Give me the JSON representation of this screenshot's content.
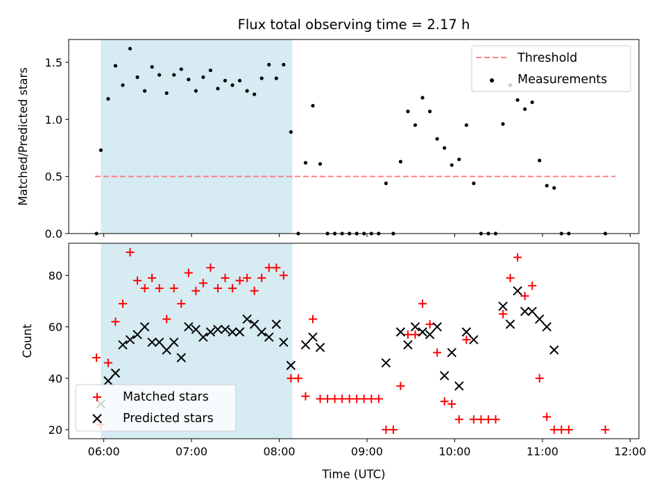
{
  "chart_data": [
    {
      "type": "scatter",
      "title": "Flux total observing time = 2.17 h",
      "xlabel": "",
      "ylabel": "Matched/Predicted stars",
      "xlim": [
        "05:36",
        "12:06"
      ],
      "ylim": [
        0,
        1.7
      ],
      "yticks": [
        0.0,
        0.5,
        1.0,
        1.5
      ],
      "ytick_labels": [
        "0.0",
        "0.5",
        "1.0",
        "1.5"
      ],
      "grid": false,
      "legend": "top-right",
      "shaded_span": {
        "from": "05:58",
        "to": "08:09",
        "color": "#add8e6"
      },
      "threshold": {
        "name": "Threshold",
        "value": 0.5,
        "from": "05:54",
        "to": "11:50",
        "color": "#ff7f7f"
      },
      "series": [
        {
          "name": "Measurements",
          "color": "#000000",
          "marker": "dot",
          "points": [
            [
              "05:55",
              0.0
            ],
            [
              "05:58",
              0.73
            ],
            [
              "06:03",
              1.18
            ],
            [
              "06:08",
              1.47
            ],
            [
              "06:13",
              1.3
            ],
            [
              "06:18",
              1.62
            ],
            [
              "06:23",
              1.37
            ],
            [
              "06:28",
              1.25
            ],
            [
              "06:33",
              1.46
            ],
            [
              "06:38",
              1.39
            ],
            [
              "06:43",
              1.23
            ],
            [
              "06:48",
              1.39
            ],
            [
              "06:53",
              1.44
            ],
            [
              "06:58",
              1.35
            ],
            [
              "07:03",
              1.25
            ],
            [
              "07:08",
              1.37
            ],
            [
              "07:13",
              1.43
            ],
            [
              "07:18",
              1.27
            ],
            [
              "07:23",
              1.34
            ],
            [
              "07:28",
              1.3
            ],
            [
              "07:33",
              1.34
            ],
            [
              "07:38",
              1.25
            ],
            [
              "07:43",
              1.22
            ],
            [
              "07:48",
              1.36
            ],
            [
              "07:53",
              1.48
            ],
            [
              "07:58",
              1.36
            ],
            [
              "08:03",
              1.48
            ],
            [
              "08:08",
              0.89
            ],
            [
              "08:13",
              0.0
            ],
            [
              "08:18",
              0.62
            ],
            [
              "08:23",
              1.12
            ],
            [
              "08:28",
              0.61
            ],
            [
              "08:33",
              0.0
            ],
            [
              "08:38",
              0.0
            ],
            [
              "08:43",
              0.0
            ],
            [
              "08:48",
              0.0
            ],
            [
              "08:53",
              0.0
            ],
            [
              "08:58",
              0.0
            ],
            [
              "09:03",
              0.0
            ],
            [
              "09:08",
              0.0
            ],
            [
              "09:13",
              0.44
            ],
            [
              "09:18",
              0.0
            ],
            [
              "09:23",
              0.63
            ],
            [
              "09:28",
              1.07
            ],
            [
              "09:33",
              0.95
            ],
            [
              "09:38",
              1.19
            ],
            [
              "09:43",
              1.07
            ],
            [
              "09:48",
              0.83
            ],
            [
              "09:53",
              0.75
            ],
            [
              "09:58",
              0.6
            ],
            [
              "10:03",
              0.65
            ],
            [
              "10:08",
              0.95
            ],
            [
              "10:13",
              0.44
            ],
            [
              "10:18",
              0.0
            ],
            [
              "10:23",
              0.0
            ],
            [
              "10:28",
              0.0
            ],
            [
              "10:33",
              0.96
            ],
            [
              "10:38",
              1.3
            ],
            [
              "10:43",
              1.17
            ],
            [
              "10:48",
              1.09
            ],
            [
              "10:53",
              1.15
            ],
            [
              "10:58",
              0.64
            ],
            [
              "11:03",
              0.42
            ],
            [
              "11:08",
              0.4
            ],
            [
              "11:13",
              0.0
            ],
            [
              "11:18",
              0.0
            ],
            [
              "11:43",
              0.0
            ]
          ]
        }
      ]
    },
    {
      "type": "scatter",
      "title": "",
      "xlabel": "Time (UTC)",
      "ylabel": "Count",
      "xlim": [
        "05:36",
        "12:06"
      ],
      "xticks": [
        "06:00",
        "07:00",
        "08:00",
        "09:00",
        "10:00",
        "11:00",
        "12:00"
      ],
      "ylim": [
        16.5,
        92.5
      ],
      "yticks": [
        20,
        40,
        60,
        80
      ],
      "ytick_labels": [
        "20",
        "40",
        "60",
        "80"
      ],
      "grid": false,
      "legend": "lower-left",
      "shaded_span": {
        "from": "05:58",
        "to": "08:09",
        "color": "#add8e6"
      },
      "series": [
        {
          "name": "Matched stars",
          "color": "#ff0000",
          "marker": "plus",
          "points": [
            [
              "05:55",
              48
            ],
            [
              "05:58",
              22
            ],
            [
              "06:03",
              46
            ],
            [
              "06:08",
              62
            ],
            [
              "06:13",
              69
            ],
            [
              "06:18",
              89
            ],
            [
              "06:23",
              78
            ],
            [
              "06:28",
              75
            ],
            [
              "06:33",
              79
            ],
            [
              "06:38",
              75
            ],
            [
              "06:43",
              63
            ],
            [
              "06:48",
              75
            ],
            [
              "06:53",
              69
            ],
            [
              "06:58",
              81
            ],
            [
              "07:03",
              74
            ],
            [
              "07:08",
              77
            ],
            [
              "07:13",
              83
            ],
            [
              "07:18",
              75
            ],
            [
              "07:23",
              79
            ],
            [
              "07:28",
              75
            ],
            [
              "07:33",
              78
            ],
            [
              "07:38",
              79
            ],
            [
              "07:43",
              74
            ],
            [
              "07:48",
              79
            ],
            [
              "07:53",
              83
            ],
            [
              "07:58",
              83
            ],
            [
              "08:03",
              80
            ],
            [
              "08:08",
              40
            ],
            [
              "08:13",
              40
            ],
            [
              "08:18",
              33
            ],
            [
              "08:23",
              63
            ],
            [
              "08:28",
              32
            ],
            [
              "08:33",
              32
            ],
            [
              "08:38",
              32
            ],
            [
              "08:43",
              32
            ],
            [
              "08:48",
              32
            ],
            [
              "08:53",
              32
            ],
            [
              "08:58",
              32
            ],
            [
              "09:03",
              32
            ],
            [
              "09:08",
              32
            ],
            [
              "09:13",
              20
            ],
            [
              "09:18",
              20
            ],
            [
              "09:23",
              37
            ],
            [
              "09:28",
              57
            ],
            [
              "09:33",
              57
            ],
            [
              "09:38",
              69
            ],
            [
              "09:43",
              61
            ],
            [
              "09:48",
              50
            ],
            [
              "09:53",
              31
            ],
            [
              "09:58",
              30
            ],
            [
              "10:03",
              24
            ],
            [
              "10:08",
              55
            ],
            [
              "10:13",
              24
            ],
            [
              "10:18",
              24
            ],
            [
              "10:23",
              24
            ],
            [
              "10:28",
              24
            ],
            [
              "10:33",
              65
            ],
            [
              "10:38",
              79
            ],
            [
              "10:43",
              87
            ],
            [
              "10:48",
              72
            ],
            [
              "10:53",
              76
            ],
            [
              "10:58",
              40
            ],
            [
              "11:03",
              25
            ],
            [
              "11:08",
              20
            ],
            [
              "11:13",
              20
            ],
            [
              "11:18",
              20
            ],
            [
              "11:43",
              20
            ]
          ]
        },
        {
          "name": "Predicted stars",
          "color": "#000000",
          "marker": "x",
          "points": [
            [
              "05:58",
              30
            ],
            [
              "06:03",
              39
            ],
            [
              "06:08",
              42
            ],
            [
              "06:13",
              53
            ],
            [
              "06:18",
              55
            ],
            [
              "06:23",
              57
            ],
            [
              "06:28",
              60
            ],
            [
              "06:33",
              54
            ],
            [
              "06:38",
              54
            ],
            [
              "06:43",
              51
            ],
            [
              "06:48",
              54
            ],
            [
              "06:53",
              48
            ],
            [
              "06:58",
              60
            ],
            [
              "07:03",
              59
            ],
            [
              "07:08",
              56
            ],
            [
              "07:13",
              58
            ],
            [
              "07:18",
              59
            ],
            [
              "07:23",
              59
            ],
            [
              "07:28",
              58
            ],
            [
              "07:33",
              58
            ],
            [
              "07:38",
              63
            ],
            [
              "07:43",
              61
            ],
            [
              "07:48",
              58
            ],
            [
              "07:53",
              56
            ],
            [
              "07:58",
              61
            ],
            [
              "08:03",
              54
            ],
            [
              "08:08",
              45
            ],
            [
              "08:18",
              53
            ],
            [
              "08:23",
              56
            ],
            [
              "08:28",
              52
            ],
            [
              "09:13",
              46
            ],
            [
              "09:23",
              58
            ],
            [
              "09:28",
              53
            ],
            [
              "09:33",
              60
            ],
            [
              "09:38",
              58
            ],
            [
              "09:43",
              57
            ],
            [
              "09:48",
              60
            ],
            [
              "09:53",
              41
            ],
            [
              "09:58",
              50
            ],
            [
              "10:03",
              37
            ],
            [
              "10:08",
              58
            ],
            [
              "10:13",
              55
            ],
            [
              "10:33",
              68
            ],
            [
              "10:38",
              61
            ],
            [
              "10:43",
              74
            ],
            [
              "10:48",
              66
            ],
            [
              "10:53",
              66
            ],
            [
              "10:58",
              63
            ],
            [
              "11:03",
              60
            ],
            [
              "11:08",
              51
            ]
          ]
        }
      ]
    }
  ]
}
